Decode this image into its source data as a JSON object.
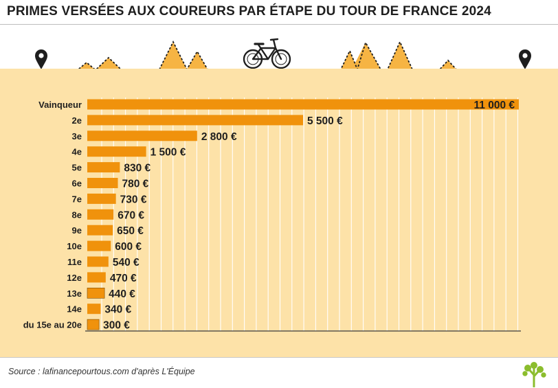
{
  "header": {
    "title": "PRIMES VERSÉES AUX COUREURS PAR ÉTAPE DU TOUR DE FRANCE 2024"
  },
  "footer": {
    "source": "Source : lafinancepourtous.com d'après L'Équipe"
  },
  "icons": [
    "start-pin-icon",
    "bicycle-icon",
    "finish-pin-icon",
    "tree-logo-icon"
  ],
  "colors": {
    "bar": "#f0920c",
    "panel": "#fde2a8",
    "mountain": "#f6b443",
    "text": "#1e1e1e",
    "grid": "#ffffff"
  },
  "chart_data": {
    "type": "bar",
    "orientation": "horizontal",
    "title": "PRIMES VERSÉES AUX COUREURS PAR ÉTAPE DU TOUR DE FRANCE 2024",
    "categories": [
      "Vainqueur",
      "2e",
      "3e",
      "4e",
      "5e",
      "6e",
      "7e",
      "8e",
      "9e",
      "10e",
      "11e",
      "12e",
      "13e",
      "14e",
      "du 15e au 20e"
    ],
    "values": [
      11000,
      5500,
      2800,
      1500,
      830,
      780,
      730,
      670,
      650,
      600,
      540,
      470,
      440,
      340,
      300
    ],
    "labels": [
      "11 000 €",
      "5 500 €",
      "2 800 €",
      "1 500 €",
      "830 €",
      "780 €",
      "730 €",
      "670 €",
      "650 €",
      "600 €",
      "540 €",
      "470 €",
      "440 €",
      "340 €",
      "300 €"
    ],
    "xlim": [
      0,
      11000
    ],
    "grid": true
  }
}
